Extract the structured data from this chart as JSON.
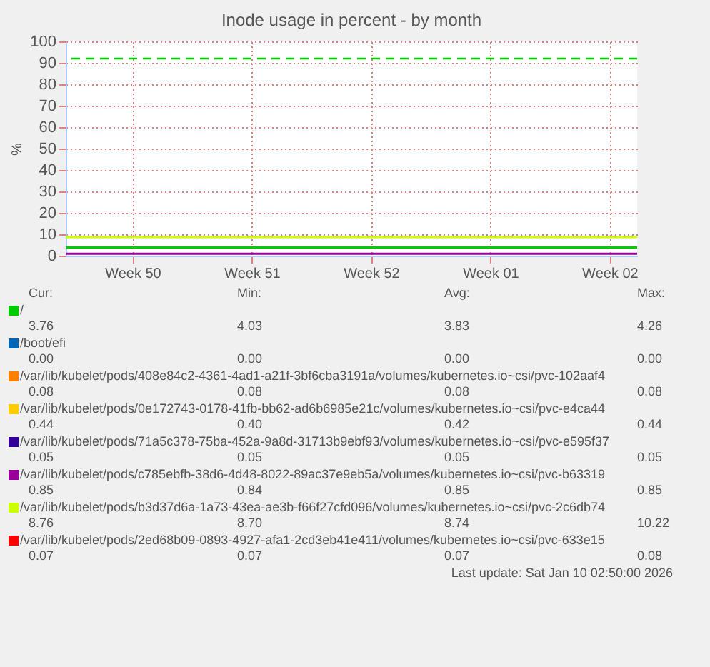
{
  "chart_data": {
    "type": "line",
    "title": "Inode usage in percent - by month",
    "ylabel": "%",
    "x": [
      "2025-12-07T14:00",
      "2026-01-10T02:50"
    ],
    "xlim": [
      "2025-12-07T14:00",
      "2026-01-10T02:50"
    ],
    "xticks": [
      {
        "value": "2025-12-11T12:00",
        "label": "Week 50"
      },
      {
        "value": "2025-12-18T12:00",
        "label": "Week 51"
      },
      {
        "value": "2025-12-25T12:00",
        "label": "Week 52"
      },
      {
        "value": "2026-01-01T12:00",
        "label": "Week 01"
      },
      {
        "value": "2026-01-08T12:00",
        "label": "Week 02"
      }
    ],
    "ylim": [
      0,
      100
    ],
    "yticks": [
      0,
      10,
      20,
      30,
      40,
      50,
      60,
      70,
      80,
      90,
      100
    ],
    "grid": true,
    "legend": "bottom",
    "marker": "none",
    "line_style": "solid",
    "series": [
      {
        "name": "/",
        "color": "#00cc00",
        "values": [
          3.8,
          3.8
        ]
      },
      {
        "name": "/boot/efi",
        "color": "#0066b3",
        "values": [
          null,
          null
        ]
      },
      {
        "name": "/var/lib/kubelet/pods/408e84c2-4361-4ad1-a21f-3bf6cba3191a/volumes/kubernetes.io~csi/pvc-102aaf4",
        "color": "#ff8000",
        "values": [
          null,
          null
        ]
      },
      {
        "name": "/var/lib/kubelet/pods/0e172743-0178-41fb-bb62-ad6b6985e21c/volumes/kubernetes.io~csi/pvc-e4ca44",
        "color": "#ffcc00",
        "values": [
          null,
          null
        ]
      },
      {
        "name": "/var/lib/kubelet/pods/71a5c378-75ba-452a-9a8d-31713b9ebf93/volumes/kubernetes.io~csi/pvc-e595f37",
        "color": "#330099",
        "values": [
          null,
          null
        ]
      },
      {
        "name": "/var/lib/kubelet/pods/c785ebfb-38d6-4d48-8022-89ac37e9eb5a/volumes/kubernetes.io~csi/pvc-b63319",
        "color": "#990099",
        "values": [
          0.9,
          0.9
        ]
      },
      {
        "name": "/var/lib/kubelet/pods/b3d37d6a-1a73-43ea-ae3b-f66f27cfd096/volumes/kubernetes.io~csi/pvc-2c6db74",
        "color": "#ccff00",
        "values": [
          8.7,
          8.7
        ]
      },
      {
        "name": "/var/lib/kubelet/pods/2ed68b09-0893-4927-afa1-2cd3eb41e411/volumes/kubernetes.io~csi/pvc-633e15",
        "color": "#ff0000",
        "values": [
          null,
          null
        ]
      }
    ],
    "ref_lines": [
      {
        "axis": "y",
        "value": 92,
        "color": "#00cc00",
        "line_style": "dashed"
      }
    ],
    "annotations": [
      "Cur:",
      "Min:",
      "Avg:",
      "Max:",
      "3.76",
      "4.03",
      "3.83",
      "4.26",
      "0.00",
      "0.00",
      "0.00",
      "0.00",
      "0.08",
      "0.08",
      "0.08",
      "0.08",
      "0.44",
      "0.40",
      "0.42",
      "0.44",
      "0.05",
      "0.05",
      "0.05",
      "0.05",
      "0.85",
      "0.84",
      "0.85",
      "0.85",
      "8.76",
      "8.70",
      "8.74",
      "10.22",
      "0.07",
      "0.07",
      "0.07",
      "0.08",
      "Last update: Sat Jan 10 02:50:00 2026"
    ]
  }
}
